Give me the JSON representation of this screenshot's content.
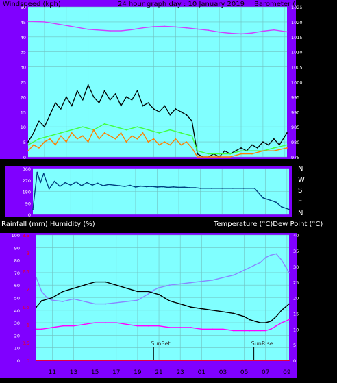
{
  "colors": {
    "background": "#000000",
    "frame": "#8000ff",
    "plot_bg": "#80ffff",
    "grid": "#70c0c0",
    "windspeed": "#000000",
    "gust_green": "#40ff40",
    "gust_orange": "#ff8000",
    "barometer": "#d040ff",
    "direction": "#004080",
    "humidity": "#8888ff",
    "temperature": "#000000",
    "dewpoint": "#ff00ff",
    "rainfall": "#ff0000",
    "left_axis_text": "#ffffff",
    "right_axis_text": "#ffffff",
    "rain_axis_text": "#ff0000"
  },
  "chart_data": [
    {
      "type": "line",
      "title": "24 hour graph day : 10 January 2019",
      "left_label": "Windspeed (kph)",
      "right_label": "Barometer (hpa)",
      "x_ticks": [
        "11",
        "13",
        "15",
        "17",
        "19",
        "21",
        "23",
        "01",
        "03",
        "05",
        "07",
        "09"
      ],
      "y_left_ticks": [
        "0",
        "5",
        "10",
        "15",
        "20",
        "25",
        "30",
        "35",
        "40",
        "45",
        "50"
      ],
      "y_left_range": [
        0,
        50
      ],
      "y_right_ticks": [
        "975",
        "980",
        "985",
        "990",
        "995",
        "1000",
        "1005",
        "1010",
        "1015",
        "1020",
        "1025"
      ],
      "y_right_range": [
        975,
        1025
      ],
      "x_hour_range": [
        9.5,
        33.2
      ],
      "grid": true,
      "series": [
        {
          "name": "Barometer",
          "axis": "right",
          "key": "barometer",
          "x": [
            9.5,
            11,
            13,
            15,
            17,
            18,
            19,
            20,
            21,
            22,
            23,
            24,
            25,
            26,
            27,
            28,
            29,
            30,
            31,
            32,
            33.2
          ],
          "y": [
            1020.2,
            1020.0,
            1018.8,
            1017.5,
            1017.0,
            1017.0,
            1017.4,
            1018.0,
            1018.4,
            1018.5,
            1018.3,
            1018.0,
            1017.6,
            1017.2,
            1016.6,
            1016.2,
            1016.0,
            1016.3,
            1016.9,
            1017.3,
            1016.7
          ]
        },
        {
          "name": "Wind speed",
          "axis": "left",
          "key": "windspeed",
          "x": [
            9.5,
            10,
            10.5,
            11,
            11.5,
            12,
            12.5,
            13,
            13.5,
            14,
            14.5,
            15,
            15.5,
            16,
            16.5,
            17,
            17.5,
            18,
            18.5,
            19,
            19.5,
            20,
            20.5,
            21,
            21.5,
            22,
            22.5,
            23,
            23.5,
            24,
            24.5,
            25,
            25.5,
            26,
            26.5,
            27,
            27.5,
            28,
            28.5,
            29,
            29.5,
            30,
            30.5,
            31,
            31.5,
            32,
            32.5,
            33.2
          ],
          "y": [
            5,
            8,
            12,
            10,
            14,
            18,
            16,
            20,
            17,
            22,
            19,
            24,
            20,
            18,
            22,
            19,
            21,
            17,
            20,
            19,
            22,
            17,
            18,
            16,
            15,
            17,
            14,
            16,
            15,
            14,
            12,
            1,
            0,
            0,
            1,
            0,
            2,
            1,
            2,
            3,
            2,
            4,
            3,
            5,
            4,
            6,
            4,
            8
          ]
        },
        {
          "name": "Gust green",
          "axis": "left",
          "key": "gust_green",
          "x": [
            9.5,
            10.5,
            11.5,
            12.5,
            13.5,
            14.5,
            15.5,
            16.5,
            17.5,
            18.5,
            19.5,
            20.5,
            21.5,
            22.5,
            23.5,
            24.5,
            25,
            26,
            27,
            28,
            29,
            30,
            31,
            32,
            33.2
          ],
          "y": [
            4,
            6,
            7,
            8,
            9,
            10,
            9,
            11,
            10,
            9,
            10,
            9,
            8,
            9,
            8,
            7,
            2,
            1,
            1,
            1,
            2,
            2,
            2,
            3,
            4
          ]
        },
        {
          "name": "Gust orange",
          "axis": "left",
          "key": "gust_orange",
          "x": [
            9.5,
            10,
            10.5,
            11,
            11.5,
            12,
            12.5,
            13,
            13.5,
            14,
            14.5,
            15,
            15.5,
            16,
            16.5,
            17,
            17.5,
            18,
            18.5,
            19,
            19.5,
            20,
            20.5,
            21,
            21.5,
            22,
            22.5,
            23,
            23.5,
            24,
            24.5,
            25,
            26,
            27,
            28,
            29,
            30,
            31,
            32,
            33.2
          ],
          "y": [
            2,
            4,
            3,
            5,
            6,
            4,
            7,
            5,
            8,
            6,
            7,
            5,
            9,
            6,
            8,
            7,
            6,
            8,
            5,
            7,
            6,
            8,
            5,
            6,
            4,
            5,
            4,
            6,
            4,
            5,
            3,
            0,
            0,
            0,
            0,
            1,
            1,
            2,
            2,
            3
          ]
        }
      ]
    },
    {
      "type": "line",
      "y_left_ticks": [
        "0",
        "90",
        "180",
        "270",
        "360"
      ],
      "y_left_range": [
        0,
        360
      ],
      "compass_labels": [
        "N",
        "W",
        "S",
        "E",
        "N"
      ],
      "x_hour_range": [
        9.5,
        33.2
      ],
      "grid": true,
      "series": [
        {
          "name": "Wind direction",
          "axis": "left",
          "key": "direction",
          "x": [
            9.5,
            9.9,
            10.2,
            10.5,
            11,
            11.5,
            12,
            12.5,
            13,
            13.5,
            14,
            14.5,
            15,
            15.5,
            16,
            16.5,
            17,
            17.5,
            18,
            18.5,
            19,
            19.5,
            20,
            20.5,
            21,
            21.5,
            22,
            22.5,
            23,
            23.5,
            24,
            24.5,
            25,
            26,
            27,
            28,
            29,
            30,
            30.8,
            31.5,
            32,
            32.5,
            33.2
          ],
          "y": [
            40,
            330,
            250,
            320,
            200,
            260,
            220,
            250,
            230,
            255,
            225,
            250,
            230,
            245,
            225,
            235,
            230,
            225,
            220,
            228,
            215,
            222,
            218,
            220,
            215,
            218,
            212,
            216,
            212,
            214,
            210,
            210,
            205,
            205,
            205,
            205,
            205,
            205,
            130,
            110,
            95,
            60,
            40
          ]
        }
      ]
    },
    {
      "type": "line",
      "left_label": "Rainfall (mm)  Humidity (%)",
      "right_label": "Temperature (°C)Dew Point (°C)",
      "x_ticks": [
        "11",
        "13",
        "15",
        "17",
        "19",
        "21",
        "23",
        "01",
        "03",
        "05",
        "07",
        "09"
      ],
      "y_left_ticks": [
        "0",
        "10",
        "20",
        "30",
        "40",
        "50",
        "60",
        "70",
        "80",
        "90",
        "100"
      ],
      "y_left_range": [
        0,
        100
      ],
      "y_rain_ticks": [
        "0",
        "0.5",
        "1",
        "1.5",
        "2",
        "2.5",
        "3",
        "3.5"
      ],
      "y_rain_range": [
        0,
        3.5
      ],
      "y_right_ticks": [
        "0",
        "5",
        "10",
        "15",
        "20",
        "25",
        "30",
        "35",
        "40"
      ],
      "y_right_range": [
        0,
        40
      ],
      "x_hour_range": [
        9.5,
        33.2
      ],
      "grid": true,
      "annotations": [
        {
          "text": "SunSet",
          "hour": 20.5
        },
        {
          "text": "SunRise",
          "hour": 29.9
        }
      ],
      "series": [
        {
          "name": "Humidity",
          "axis": "left",
          "key": "humidity",
          "x": [
            9.5,
            10,
            10.5,
            11,
            12,
            13,
            14,
            15,
            16,
            17,
            18,
            19,
            20,
            20.5,
            21,
            22,
            23,
            24,
            25,
            26,
            27,
            28,
            29,
            30,
            30.5,
            31,
            31.5,
            32,
            32.5,
            33.2
          ],
          "y": [
            66,
            55,
            50,
            48,
            47,
            49,
            47,
            45,
            45,
            46,
            47,
            48,
            53,
            56,
            58,
            60,
            61,
            62,
            63,
            64,
            66,
            68,
            72,
            76,
            78,
            82,
            84,
            85,
            80,
            70
          ]
        },
        {
          "name": "Temperature",
          "axis": "right",
          "key": "temperature",
          "x": [
            9.5,
            10,
            11,
            12,
            13,
            14,
            15,
            16,
            17,
            18,
            19,
            20,
            21,
            22,
            23,
            24,
            25,
            26,
            27,
            28,
            29,
            29.5,
            30,
            30.5,
            31,
            31.5,
            32,
            32.5,
            33.2
          ],
          "y": [
            17,
            19,
            20,
            22,
            23,
            24,
            25,
            25,
            24,
            23,
            22,
            22,
            21,
            19,
            18,
            17,
            16.5,
            16,
            15.5,
            15,
            14,
            13,
            12.5,
            12,
            12,
            12.5,
            14,
            16,
            18
          ]
        },
        {
          "name": "Dew point",
          "axis": "right",
          "key": "dewpoint",
          "x": [
            9.5,
            10,
            11,
            12,
            13,
            14,
            15,
            16,
            17,
            18,
            19,
            20,
            21,
            22,
            23,
            24,
            25,
            26,
            27,
            28,
            29,
            29.5,
            30,
            30.5,
            31,
            31.5,
            32,
            32.5,
            33.2
          ],
          "y": [
            10,
            10,
            10.5,
            11,
            11,
            11.5,
            12,
            12,
            12,
            11.5,
            11,
            11,
            11,
            10.5,
            10.5,
            10.5,
            10,
            10,
            10,
            9.5,
            9.5,
            9.5,
            9.5,
            9.5,
            9.5,
            10,
            11,
            12,
            13
          ]
        },
        {
          "name": "Rainfall",
          "axis": "rain",
          "key": "rainfall",
          "x": [
            9.5,
            33.2
          ],
          "y": [
            0,
            0
          ]
        }
      ]
    }
  ]
}
